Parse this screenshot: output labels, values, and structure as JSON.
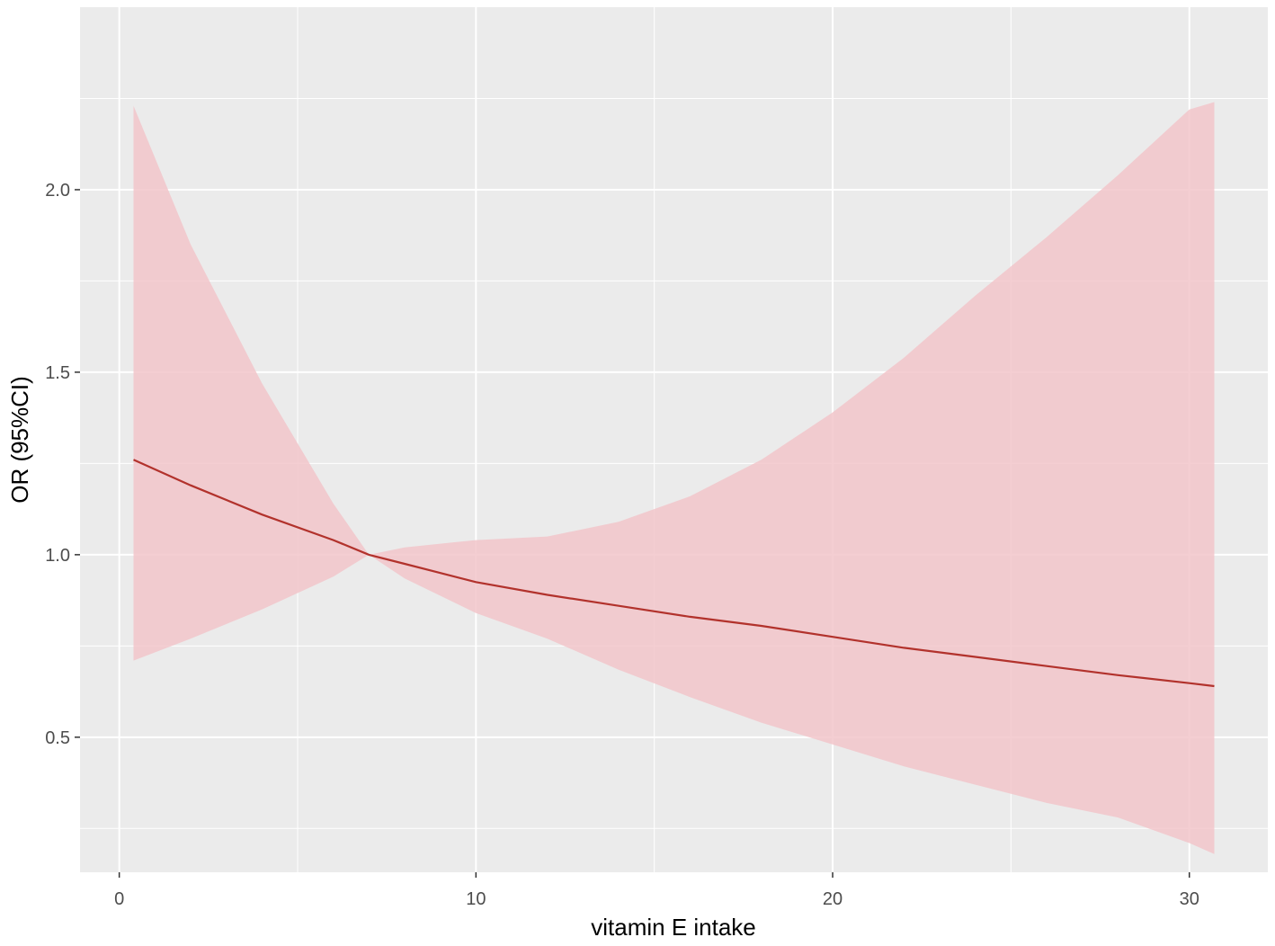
{
  "chart_data": {
    "type": "line",
    "title": "",
    "xlabel": "vitamin E intake",
    "ylabel": "OR (95%CI)",
    "xlim": [
      -1.1,
      32.2
    ],
    "ylim": [
      0.13,
      2.5
    ],
    "x_ticks": [
      0,
      10,
      20,
      30
    ],
    "x_tick_labels": [
      "0",
      "10",
      "20",
      "30"
    ],
    "y_ticks": [
      0.5,
      1.0,
      1.5,
      2.0
    ],
    "y_tick_labels": [
      "0.5",
      "1.0",
      "1.5",
      "2.0"
    ],
    "grid": true,
    "legend": "none",
    "colors": {
      "line": "#b2322c",
      "ribbon": "#f2c6ca",
      "panel": "#ebebeb",
      "grid": "#ffffff"
    },
    "series": [
      {
        "x": [
          0.4,
          2,
          4,
          6,
          7,
          8,
          10,
          12,
          14,
          16,
          18,
          20,
          22,
          24,
          26,
          28,
          30,
          30.7
        ],
        "y": [
          1.26,
          1.19,
          1.11,
          1.04,
          1.0,
          0.975,
          0.925,
          0.89,
          0.86,
          0.83,
          0.805,
          0.775,
          0.745,
          0.72,
          0.695,
          0.67,
          0.648,
          0.64
        ],
        "lower": [
          0.71,
          0.77,
          0.85,
          0.94,
          1.0,
          0.935,
          0.84,
          0.77,
          0.685,
          0.61,
          0.54,
          0.48,
          0.42,
          0.37,
          0.32,
          0.28,
          0.21,
          0.18
        ],
        "upper": [
          2.23,
          1.85,
          1.47,
          1.14,
          1.0,
          1.02,
          1.04,
          1.05,
          1.09,
          1.16,
          1.26,
          1.39,
          1.54,
          1.71,
          1.87,
          2.04,
          2.22,
          2.24
        ]
      }
    ]
  }
}
